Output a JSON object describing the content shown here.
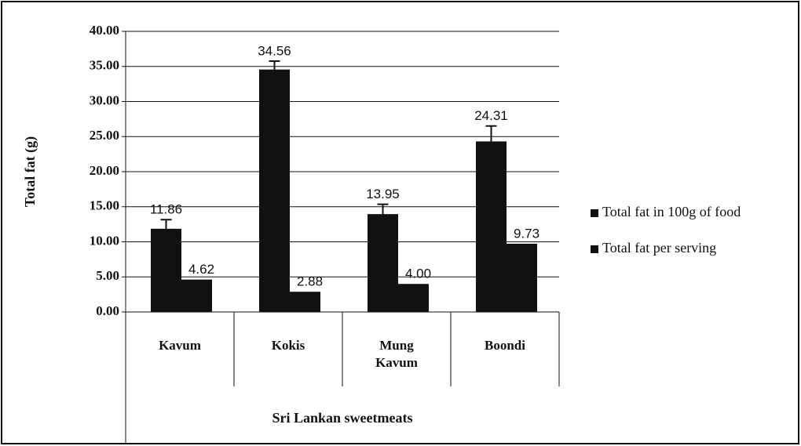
{
  "chart_data": {
    "type": "bar",
    "categories": [
      "Kavum",
      "Kokis",
      "Mung Kavum",
      "Boondi"
    ],
    "series": [
      {
        "name": "Total fat in 100g of food",
        "color": "#111111",
        "values": [
          11.86,
          34.56,
          13.95,
          24.31
        ],
        "value_labels": [
          "11.86",
          "34.56",
          "13.95",
          "24.31"
        ],
        "errors": [
          1.3,
          1.2,
          1.4,
          2.2
        ]
      },
      {
        "name": "Total fat per serving",
        "color": "#111111",
        "values": [
          4.62,
          2.88,
          4.0,
          9.73
        ],
        "value_labels": [
          "4.62",
          "2.88",
          "4.00",
          "9.73"
        ]
      }
    ],
    "ylabel": "Total fat (g)",
    "xlabel": "Sri Lankan sweetmeats",
    "ylim": [
      0,
      40
    ],
    "yticks": [
      {
        "value": 0,
        "label": "0.00"
      },
      {
        "value": 5,
        "label": "5.00"
      },
      {
        "value": 10,
        "label": "10.00"
      },
      {
        "value": 15,
        "label": "15.00"
      },
      {
        "value": 20,
        "label": "20.00"
      },
      {
        "value": 25,
        "label": "25.00"
      },
      {
        "value": 30,
        "label": "30.00"
      },
      {
        "value": 35,
        "label": "35.00"
      },
      {
        "value": 40,
        "label": "40.00"
      }
    ],
    "grid": true,
    "legend": "right"
  }
}
